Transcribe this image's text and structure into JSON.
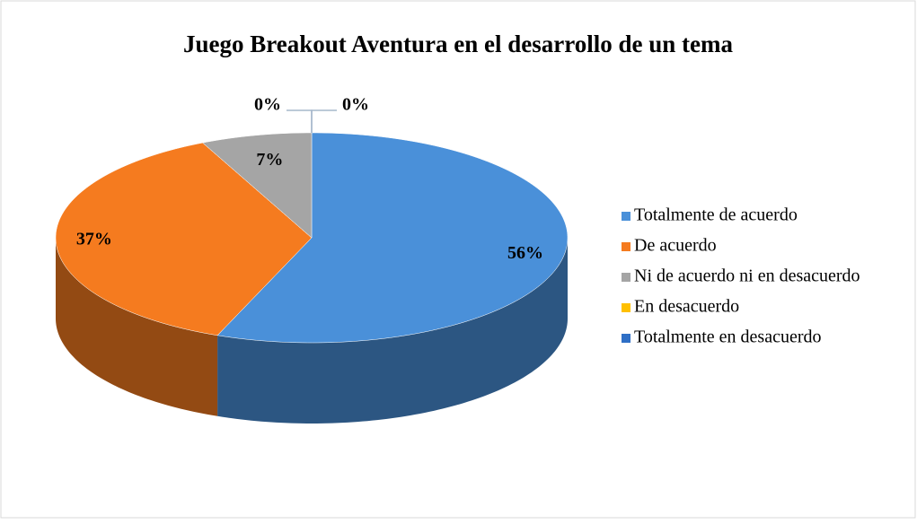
{
  "chart_data": {
    "type": "pie",
    "title": "Juego Breakout Aventura en el desarrollo de un tema",
    "categories": [
      "Totalmente de acuerdo",
      "De acuerdo",
      "Ni de acuerdo ni en desacuerdo",
      "En desacuerdo",
      "Totalmente en desacuerdo"
    ],
    "values": [
      56,
      37,
      7,
      0,
      0
    ],
    "value_labels": [
      "56%",
      "37%",
      "7%",
      "0%",
      "0%"
    ],
    "colors": [
      "#4a90d9",
      "#f57b1f",
      "#a5a5a5",
      "#ffc000",
      "#2f6fc6"
    ],
    "legend": "right"
  }
}
